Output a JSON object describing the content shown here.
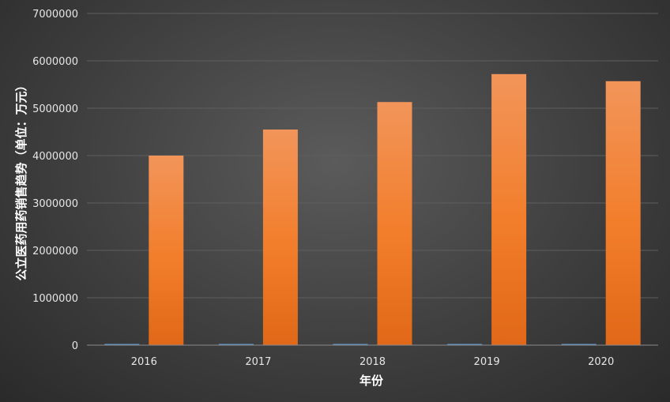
{
  "chart_data": {
    "type": "bar",
    "categories": [
      "2016",
      "2017",
      "2018",
      "2019",
      "2020"
    ],
    "series": [
      {
        "values": [
          15000,
          15000,
          15000,
          15000,
          15000
        ],
        "color": "#5b9bd5"
      },
      {
        "values": [
          4000000,
          4550000,
          5130000,
          5720000,
          5570000
        ],
        "color": "#ed7d31"
      }
    ],
    "xlabel": "年份",
    "ylabel": "公立医药用药销售趋势（单位：万元）",
    "ylim": [
      0,
      7000000
    ],
    "yticks": [
      0,
      1000000,
      2000000,
      3000000,
      4000000,
      5000000,
      6000000,
      7000000
    ],
    "ytick_labels": [
      "0",
      "1000000",
      "2000000",
      "3000000",
      "4000000",
      "5000000",
      "6000000",
      "7000000"
    ],
    "grid": true,
    "legend": "none"
  }
}
